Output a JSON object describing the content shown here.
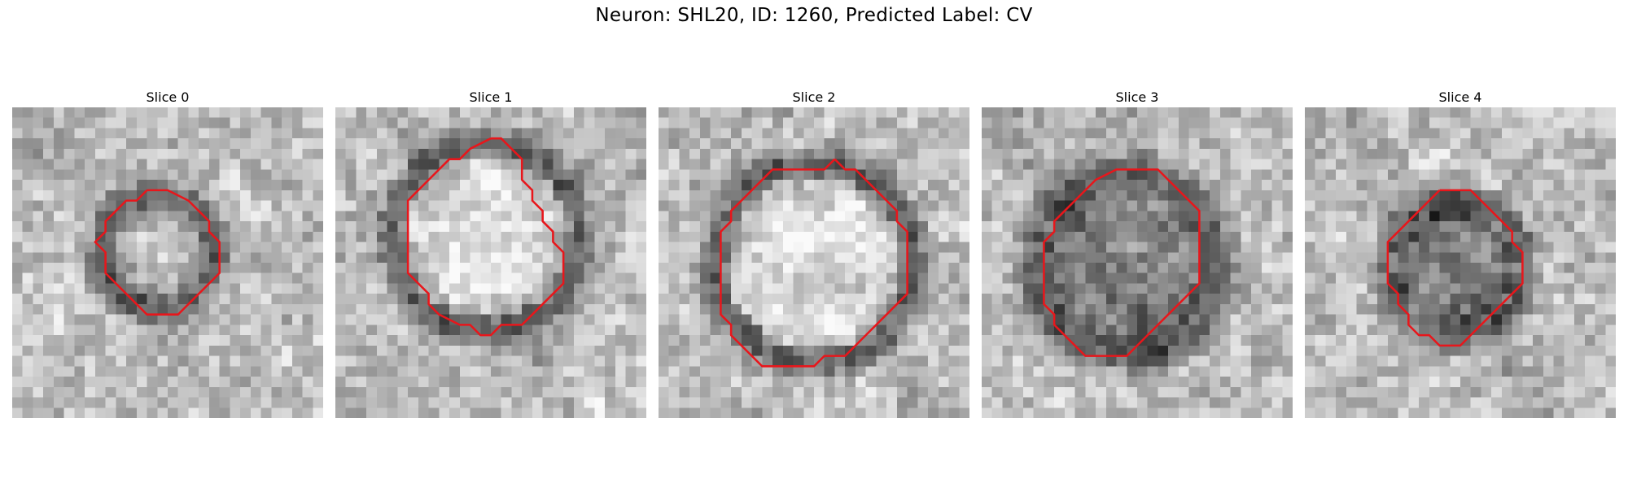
{
  "title": "Neuron: SHL20, ID: 1260, Predicted Label: CV",
  "contour_color": "#e8161b",
  "panels": [
    {
      "label": "Slice 0",
      "seed": 11,
      "contour": [
        [
          13,
          8
        ],
        [
          15,
          8
        ],
        [
          17,
          9
        ],
        [
          18,
          10
        ],
        [
          19,
          11
        ],
        [
          19,
          12
        ],
        [
          20,
          13
        ],
        [
          20,
          14
        ],
        [
          20,
          16
        ],
        [
          19,
          17
        ],
        [
          18,
          18
        ],
        [
          17,
          19
        ],
        [
          16,
          20
        ],
        [
          14,
          20
        ],
        [
          13,
          20
        ],
        [
          12,
          19
        ],
        [
          11,
          18
        ],
        [
          10,
          17
        ],
        [
          9,
          16
        ],
        [
          9,
          15
        ],
        [
          9,
          14
        ],
        [
          8,
          13
        ],
        [
          9,
          12
        ],
        [
          9,
          11
        ],
        [
          10,
          10
        ],
        [
          11,
          9
        ],
        [
          12,
          9
        ],
        [
          13,
          8
        ]
      ],
      "dark_ring": [
        14,
        14,
        5.5
      ],
      "interior": "mixed"
    },
    {
      "label": "Slice 1",
      "seed": 23,
      "contour": [
        [
          15,
          3
        ],
        [
          16,
          3
        ],
        [
          17,
          4
        ],
        [
          18,
          5
        ],
        [
          18,
          7
        ],
        [
          19,
          8
        ],
        [
          19,
          9
        ],
        [
          20,
          10
        ],
        [
          20,
          11
        ],
        [
          21,
          12
        ],
        [
          21,
          13
        ],
        [
          22,
          14
        ],
        [
          22,
          15
        ],
        [
          22,
          17
        ],
        [
          21,
          18
        ],
        [
          20,
          19
        ],
        [
          19,
          20
        ],
        [
          18,
          21
        ],
        [
          17,
          21
        ],
        [
          16,
          21
        ],
        [
          15,
          22
        ],
        [
          14,
          22
        ],
        [
          13,
          21
        ],
        [
          12,
          21
        ],
        [
          10,
          20
        ],
        [
          9,
          19
        ],
        [
          9,
          18
        ],
        [
          8,
          17
        ],
        [
          7,
          16
        ],
        [
          7,
          15
        ],
        [
          7,
          13
        ],
        [
          7,
          11
        ],
        [
          7,
          9
        ],
        [
          8,
          8
        ],
        [
          9,
          7
        ],
        [
          10,
          6
        ],
        [
          11,
          5
        ],
        [
          12,
          5
        ],
        [
          13,
          4
        ],
        [
          15,
          3
        ]
      ],
      "dark_ring": [
        14.5,
        12.5,
        9
      ],
      "interior": "light"
    },
    {
      "label": "Slice 2",
      "seed": 37,
      "contour": [
        [
          17,
          5
        ],
        [
          18,
          6
        ],
        [
          19,
          6
        ],
        [
          20,
          7
        ],
        [
          21,
          8
        ],
        [
          22,
          9
        ],
        [
          23,
          10
        ],
        [
          23,
          11
        ],
        [
          24,
          12
        ],
        [
          24,
          14
        ],
        [
          24,
          16
        ],
        [
          24,
          18
        ],
        [
          23,
          19
        ],
        [
          22,
          20
        ],
        [
          21,
          21
        ],
        [
          20,
          22
        ],
        [
          19,
          23
        ],
        [
          18,
          24
        ],
        [
          16,
          24
        ],
        [
          15,
          25
        ],
        [
          14,
          25
        ],
        [
          12,
          25
        ],
        [
          10,
          25
        ],
        [
          9,
          24
        ],
        [
          8,
          23
        ],
        [
          7,
          22
        ],
        [
          7,
          21
        ],
        [
          6,
          20
        ],
        [
          6,
          18
        ],
        [
          6,
          16
        ],
        [
          6,
          14
        ],
        [
          6,
          12
        ],
        [
          7,
          11
        ],
        [
          7,
          10
        ],
        [
          8,
          9
        ],
        [
          9,
          8
        ],
        [
          10,
          7
        ],
        [
          11,
          6
        ],
        [
          12,
          6
        ],
        [
          14,
          6
        ],
        [
          16,
          6
        ],
        [
          17,
          5
        ]
      ],
      "dark_ring": [
        15,
        15,
        9.5
      ],
      "interior": "light"
    },
    {
      "label": "Slice 3",
      "seed": 53,
      "contour": [
        [
          14,
          6
        ],
        [
          16,
          6
        ],
        [
          17,
          6
        ],
        [
          18,
          7
        ],
        [
          19,
          8
        ],
        [
          20,
          9
        ],
        [
          21,
          10
        ],
        [
          21,
          12
        ],
        [
          21,
          14
        ],
        [
          21,
          16
        ],
        [
          21,
          17
        ],
        [
          20,
          18
        ],
        [
          19,
          19
        ],
        [
          18,
          20
        ],
        [
          17,
          21
        ],
        [
          16,
          22
        ],
        [
          15,
          23
        ],
        [
          14,
          24
        ],
        [
          12,
          24
        ],
        [
          11,
          24
        ],
        [
          10,
          24
        ],
        [
          9,
          23
        ],
        [
          8,
          22
        ],
        [
          7,
          21
        ],
        [
          7,
          20
        ],
        [
          6,
          19
        ],
        [
          6,
          17
        ],
        [
          6,
          15
        ],
        [
          6,
          13
        ],
        [
          7,
          12
        ],
        [
          7,
          11
        ],
        [
          8,
          10
        ],
        [
          9,
          9
        ],
        [
          10,
          8
        ],
        [
          11,
          7
        ],
        [
          13,
          6
        ],
        [
          14,
          6
        ]
      ],
      "dark_ring": [
        14,
        15,
        9
      ],
      "interior": "dark"
    },
    {
      "label": "Slice 4",
      "seed": 71,
      "contour": [
        [
          13,
          8
        ],
        [
          14,
          8
        ],
        [
          15,
          8
        ],
        [
          16,
          8
        ],
        [
          17,
          9
        ],
        [
          18,
          10
        ],
        [
          19,
          11
        ],
        [
          20,
          12
        ],
        [
          20,
          13
        ],
        [
          21,
          14
        ],
        [
          21,
          16
        ],
        [
          21,
          17
        ],
        [
          20,
          18
        ],
        [
          19,
          19
        ],
        [
          18,
          20
        ],
        [
          17,
          21
        ],
        [
          16,
          22
        ],
        [
          15,
          23
        ],
        [
          14,
          23
        ],
        [
          13,
          23
        ],
        [
          12,
          22
        ],
        [
          11,
          22
        ],
        [
          10,
          21
        ],
        [
          10,
          20
        ],
        [
          9,
          19
        ],
        [
          9,
          18
        ],
        [
          8,
          17
        ],
        [
          8,
          15
        ],
        [
          8,
          13
        ],
        [
          9,
          12
        ],
        [
          10,
          11
        ],
        [
          11,
          10
        ],
        [
          12,
          9
        ],
        [
          13,
          8
        ]
      ],
      "dark_ring": [
        14.5,
        15.5,
        6.5
      ],
      "interior": "dark"
    }
  ]
}
